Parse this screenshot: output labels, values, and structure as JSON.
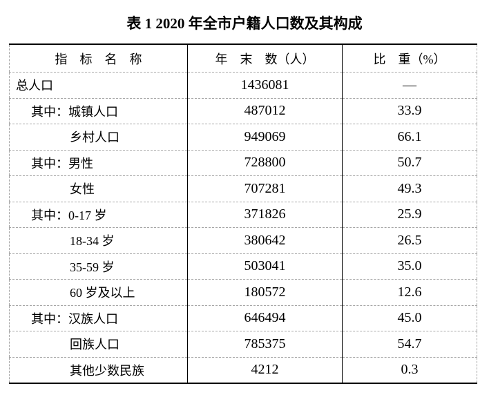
{
  "title": "表 1 2020 年全市户籍人口数及其构成",
  "table": {
    "columns": [
      "指　标　名　称",
      "年　末　数（人）",
      "比　重（%）"
    ],
    "rows": [
      {
        "label": "总人口",
        "indent": 0,
        "year_end": "1436081",
        "share": "—"
      },
      {
        "label": "其中：城镇人口",
        "indent": 1,
        "year_end": "487012",
        "share": "33.9"
      },
      {
        "label": "乡村人口",
        "indent": 2,
        "year_end": "949069",
        "share": "66.1"
      },
      {
        "label": "其中：男性",
        "indent": 1,
        "year_end": "728800",
        "share": "50.7"
      },
      {
        "label": "女性",
        "indent": 2,
        "year_end": "707281",
        "share": "49.3"
      },
      {
        "label": "其中：0-17 岁",
        "indent": 1,
        "year_end": "371826",
        "share": "25.9"
      },
      {
        "label": "18-34 岁",
        "indent": 2,
        "year_end": "380642",
        "share": "26.5"
      },
      {
        "label": "35-59 岁",
        "indent": 2,
        "year_end": "503041",
        "share": "35.0"
      },
      {
        "label": "60 岁及以上",
        "indent": 2,
        "year_end": "180572",
        "share": "12.6"
      },
      {
        "label": "其中：汉族人口",
        "indent": 1,
        "year_end": "646494",
        "share": "45.0"
      },
      {
        "label": "回族人口",
        "indent": 2,
        "year_end": "785375",
        "share": "54.7"
      },
      {
        "label": "其他少数民族",
        "indent": 2,
        "year_end": "4212",
        "share": "0.3"
      }
    ]
  },
  "colors": {
    "text": "#000000",
    "background": "#ffffff",
    "solid_border": "#000000",
    "dashed_border": "#a6a6a6"
  }
}
